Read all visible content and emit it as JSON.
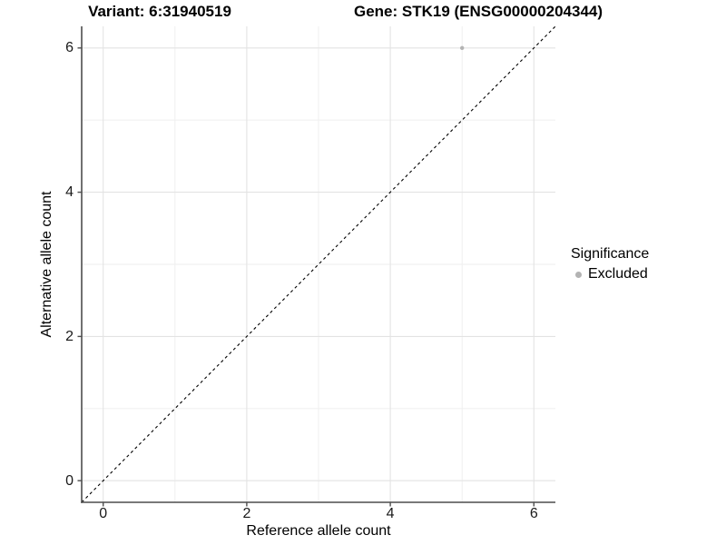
{
  "figure": {
    "background": "#ffffff",
    "title_left": "Variant: 6:31940519",
    "title_right": "Gene: STK19 (ENSG00000204344)"
  },
  "axes": {
    "x_label": "Reference allele count",
    "y_label": "Alternative allele count"
  },
  "legend": {
    "title": "Significance",
    "items": [
      {
        "label": "Excluded",
        "marker_color": "#b3b3b3"
      }
    ]
  },
  "chart_data": {
    "type": "scatter",
    "title": "Variant: 6:31940519 | Gene: STK19 (ENSG00000204344)",
    "xlabel": "Reference allele count",
    "ylabel": "Alternative allele count",
    "xlim": [
      -0.3,
      6.3
    ],
    "ylim": [
      -0.3,
      6.3
    ],
    "x_ticks": [
      0,
      2,
      4,
      6
    ],
    "y_ticks": [
      0,
      2,
      4,
      6
    ],
    "x_minor_ticks": [
      1,
      3,
      5
    ],
    "y_minor_ticks": [
      1,
      3,
      5
    ],
    "grid": true,
    "legend_position": "right",
    "series": [
      {
        "name": "Excluded",
        "color": "#b3b3b3",
        "marker_radius": 2.2,
        "points": [
          {
            "x": 5,
            "y": 6
          }
        ]
      }
    ],
    "reference_line": {
      "type": "identity",
      "linestyle": "dashed",
      "color": "#000000",
      "from": [
        -0.3,
        -0.3
      ],
      "to": [
        6.3,
        6.3
      ]
    },
    "style": {
      "panel_background": "#ffffff",
      "grid_major_color": "#e3e3e3",
      "grid_minor_color": "#eeeeee",
      "axis_line_color": "#4d4d4d",
      "tick_color": "#4d4d4d",
      "text_color": "#000000"
    }
  }
}
